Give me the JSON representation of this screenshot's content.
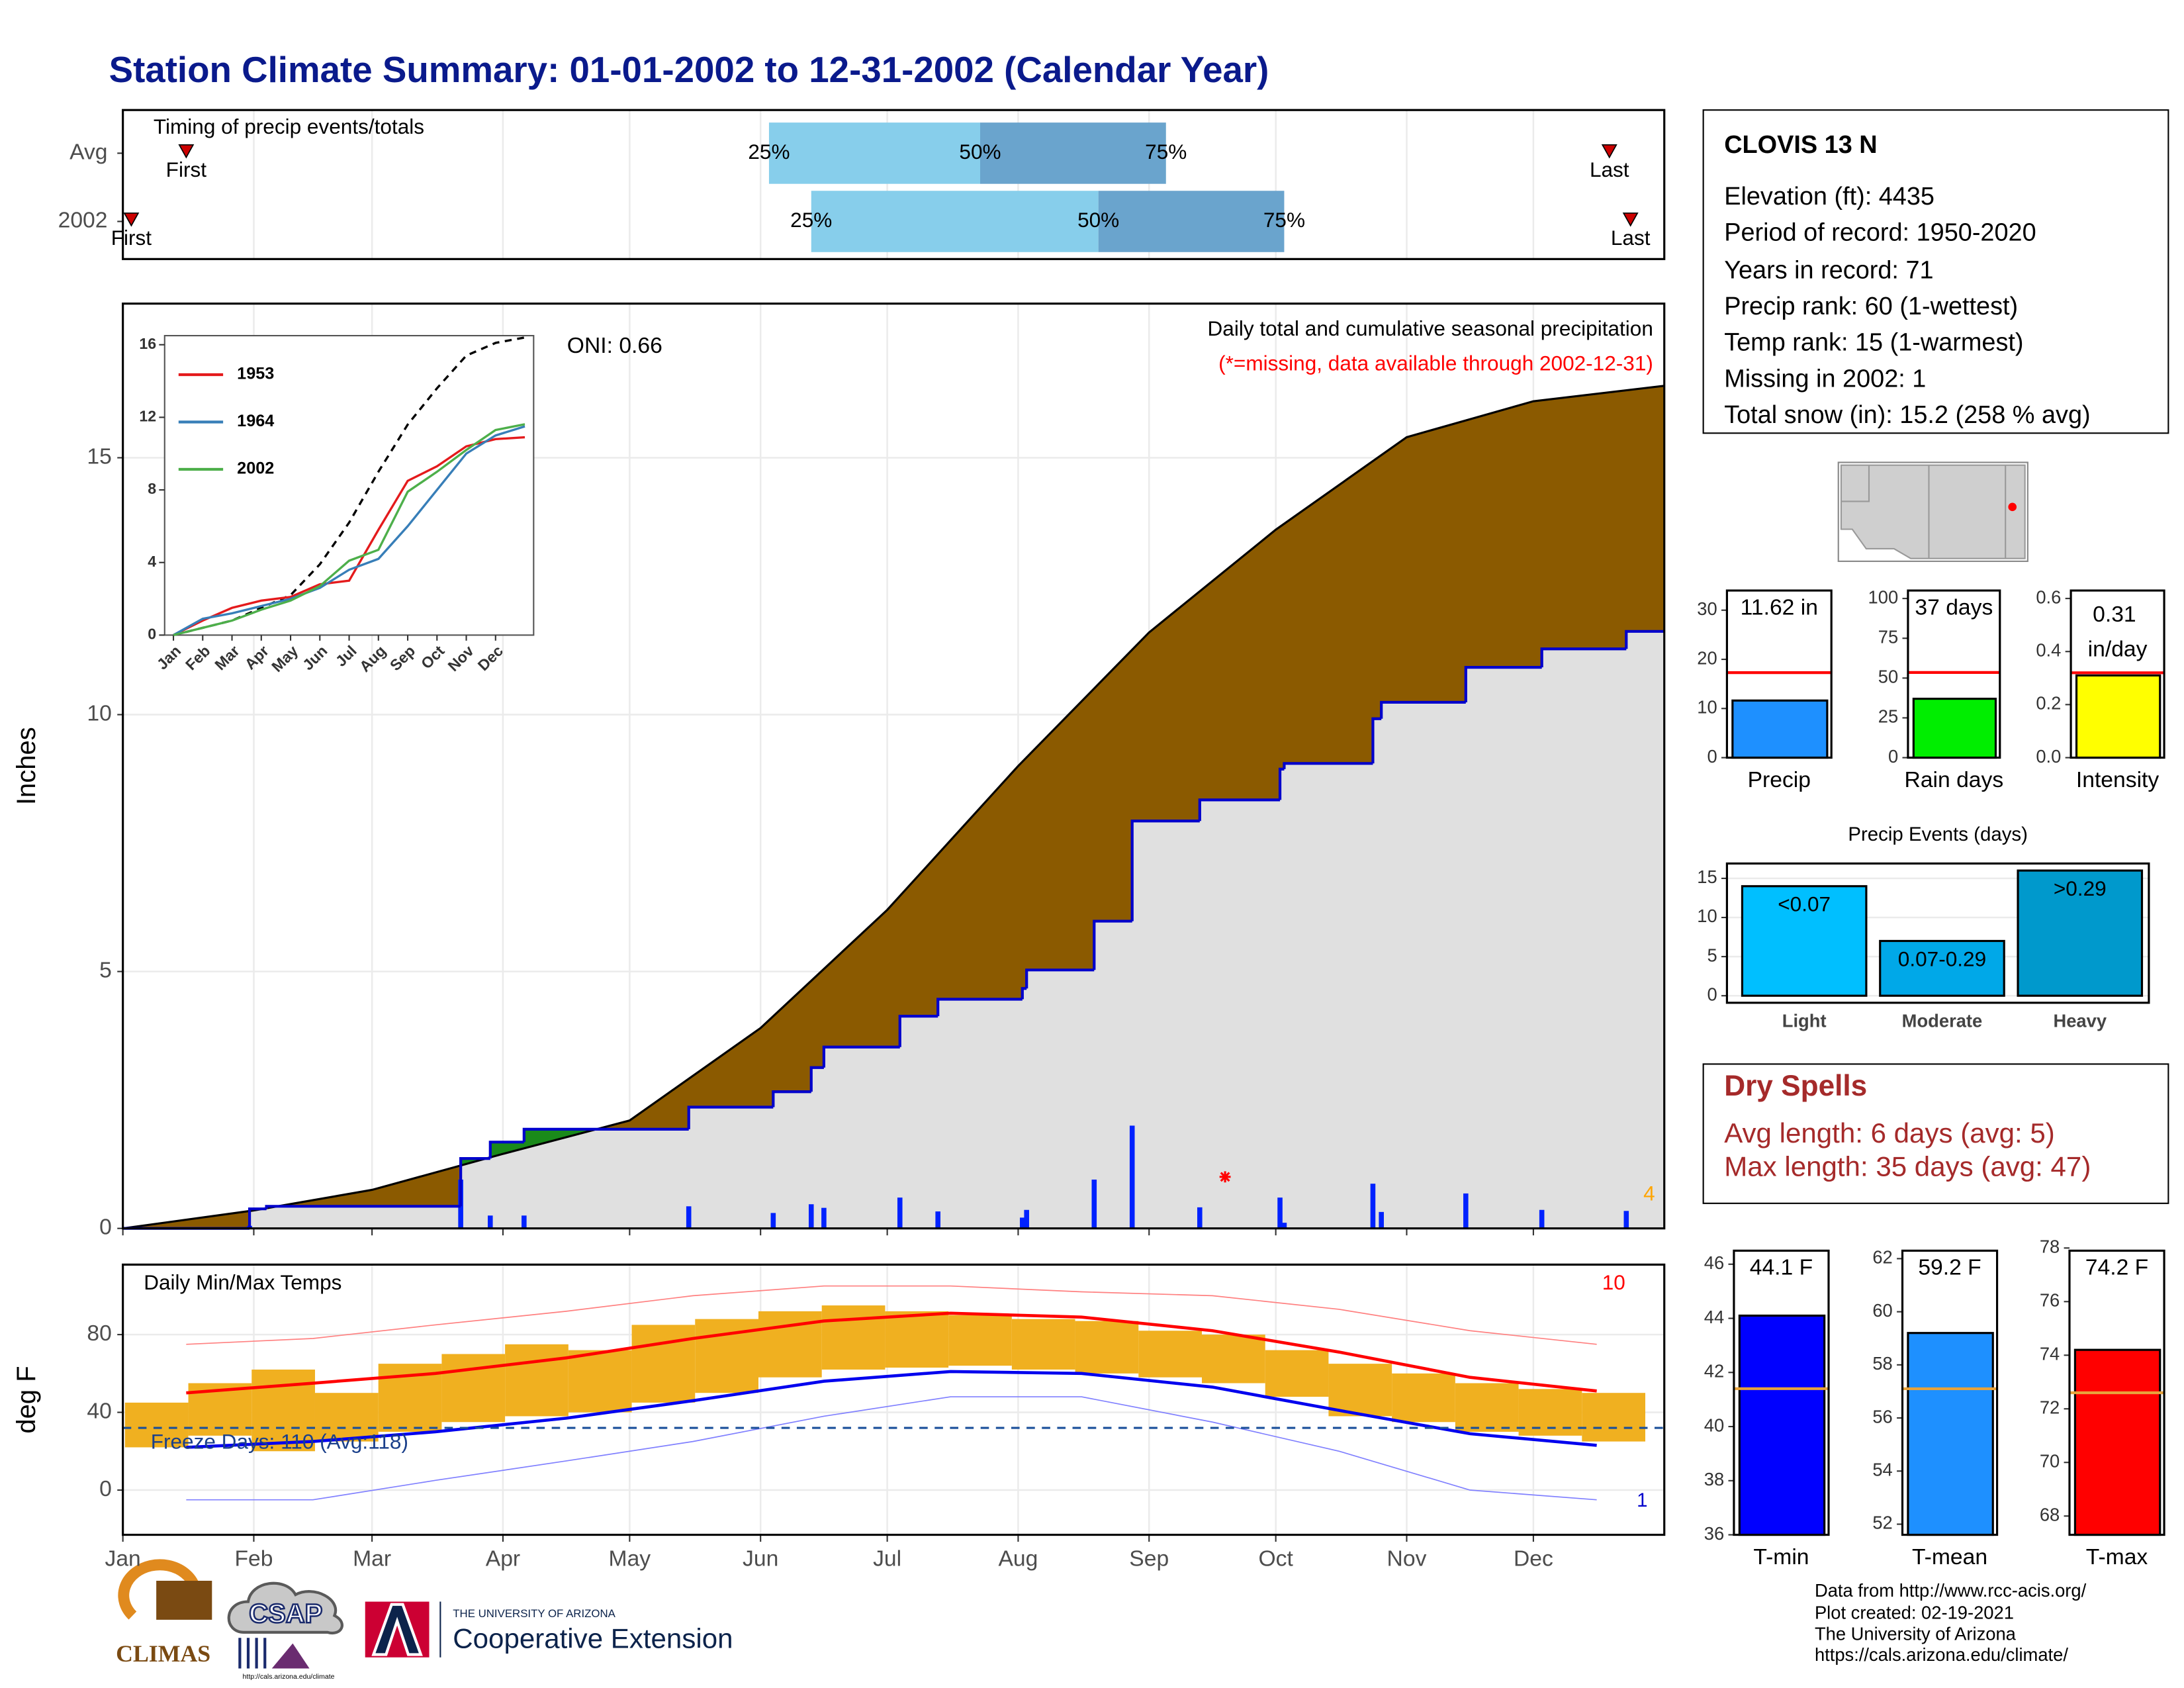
{
  "title": "Station Climate Summary: 01-01-2002 to 12-31-2002 (Calendar Year)",
  "chart_data": [
    {
      "type": "timing",
      "annotation": "Timing of precip events/totals",
      "categories": [
        "Avg",
        "2002"
      ],
      "xlim": [
        0,
        365
      ],
      "series": [
        {
          "name": "First",
          "color": "#cc0000",
          "values": [
            15,
            2
          ]
        },
        {
          "name": "25%",
          "color": "#87ceeb",
          "values": [
            153,
            163
          ]
        },
        {
          "name": "50%",
          "color": "#6aa4cd",
          "values": [
            203,
            231
          ]
        },
        {
          "name": "75%",
          "values": [
            247,
            275
          ]
        },
        {
          "name": "Last",
          "color": "#cc0000",
          "values": [
            352,
            357
          ]
        }
      ]
    },
    {
      "type": "cumulative",
      "title": "Daily total and cumulative seasonal precipitation",
      "subtitle": "(*=missing, data available through 2002-12-31)",
      "annotations": [
        {
          "text": "ONI: 0.66"
        },
        {
          "text": "4",
          "color": "#ffa500"
        }
      ],
      "ylabel": "Inches",
      "xlim": [
        0,
        365
      ],
      "ylim": [
        0,
        18
      ],
      "yticks": [
        0,
        5,
        10,
        15
      ],
      "grid": true,
      "series": [
        {
          "type": "avg",
          "color": "#8b5a00",
          "x": [
            0,
            31,
            59,
            90,
            120,
            151,
            181,
            212,
            243,
            273,
            304,
            334,
            365
          ],
          "values": [
            0,
            0.35,
            0.75,
            1.45,
            2.1,
            3.9,
            6.2,
            9.0,
            11.6,
            13.6,
            15.4,
            16.1,
            16.4
          ]
        },
        {
          "type": "cumulative",
          "color": "#0000cc",
          "fill": "#e0e0e0",
          "above_color": "#1a8a1a",
          "x": [
            0,
            30,
            34,
            80,
            87,
            95,
            134,
            154,
            163,
            166,
            184,
            193,
            213,
            214,
            230,
            239,
            255,
            274,
            275,
            296,
            298,
            318,
            336,
            356,
            365
          ],
          "values": [
            0,
            0.38,
            0.43,
            1.36,
            1.68,
            1.93,
            2.36,
            2.66,
            3.13,
            3.53,
            4.13,
            4.46,
            4.67,
            5.03,
            5.98,
            7.93,
            8.34,
            8.94,
            9.05,
            9.92,
            10.24,
            10.92,
            11.28,
            11.62,
            11.62
          ]
        },
        {
          "type": "daily",
          "color": "#0022ff",
          "x": [
            30,
            80,
            87,
            95,
            134,
            154,
            163,
            166,
            184,
            193,
            213,
            214,
            230,
            239,
            255,
            274,
            275,
            296,
            298,
            318,
            336,
            356
          ],
          "values": [
            0.05,
            0.95,
            0.25,
            0.25,
            0.43,
            0.3,
            0.47,
            0.4,
            0.6,
            0.33,
            0.21,
            0.36,
            0.95,
            2.0,
            0.41,
            0.6,
            0.11,
            0.87,
            0.32,
            0.68,
            0.36,
            0.34
          ]
        },
        {
          "type": "missing",
          "color": "#ff0000",
          "x": [
            261
          ]
        }
      ]
    },
    {
      "type": "line",
      "xlim": [
        -0.3,
        12.3
      ],
      "ylim": [
        0,
        16.5
      ],
      "yticks": [
        0,
        4,
        8,
        12,
        16
      ],
      "xticks": [
        {
          "value": 0,
          "label": "Jan"
        },
        {
          "value": 1,
          "label": "Feb"
        },
        {
          "value": 2,
          "label": "Mar"
        },
        {
          "value": 3,
          "label": "Apr"
        },
        {
          "value": 4,
          "label": "May"
        },
        {
          "value": 5,
          "label": "Jun"
        },
        {
          "value": 6,
          "label": "Jul"
        },
        {
          "value": 7,
          "label": "Aug"
        },
        {
          "value": 8,
          "label": "Sep"
        },
        {
          "value": 9,
          "label": "Oct"
        },
        {
          "value": 10,
          "label": "Nov"
        },
        {
          "value": 11,
          "label": "Dec"
        }
      ],
      "x": [
        0,
        1,
        2,
        3,
        4,
        5,
        6,
        7,
        8,
        9,
        10,
        11,
        12
      ],
      "series": [
        {
          "color": "#000000",
          "dash": true,
          "values": [
            0,
            0.4,
            0.8,
            1.5,
            2.2,
            3.9,
            6.2,
            9.0,
            11.6,
            13.6,
            15.4,
            16.1,
            16.4
          ]
        },
        {
          "name": "1953",
          "color": "#e41a1c",
          "values": [
            0,
            0.8,
            1.5,
            1.9,
            2.1,
            2.8,
            3.0,
            5.8,
            8.5,
            9.3,
            10.4,
            10.8,
            10.9
          ]
        },
        {
          "name": "1964",
          "color": "#377eb8",
          "values": [
            0,
            0.9,
            1.2,
            1.6,
            2.0,
            2.6,
            3.6,
            4.2,
            6.0,
            8.0,
            10.0,
            11.0,
            11.5
          ]
        },
        {
          "name": "2002",
          "color": "#4daf4a",
          "values": [
            0,
            0.4,
            0.8,
            1.4,
            1.9,
            2.7,
            4.1,
            4.7,
            7.9,
            9.0,
            10.2,
            11.3,
            11.62
          ]
        }
      ]
    },
    {
      "type": "temperature",
      "title": "Daily Min/Max Temps",
      "annotations": [
        {
          "text": "Freeze Days: 110 (Avg:118)",
          "color": "#1a3f8a"
        },
        {
          "text": "10",
          "color": "#ff0000"
        },
        {
          "text": "1",
          "color": "#0000cc"
        }
      ],
      "ylabel": "deg F",
      "xlim": [
        0,
        365
      ],
      "ylim": [
        -23,
        116
      ],
      "yticks": [
        0,
        40,
        80
      ],
      "freeze_line": 32,
      "grid": true,
      "xticks": [
        {
          "value": 0,
          "label": "Jan"
        },
        {
          "value": 31,
          "label": "Feb"
        },
        {
          "value": 59,
          "label": "Mar"
        },
        {
          "value": 90,
          "label": "Apr"
        },
        {
          "value": 120,
          "label": "May"
        },
        {
          "value": 151,
          "label": "Jun"
        },
        {
          "value": 181,
          "label": "Jul"
        },
        {
          "value": 212,
          "label": "Aug"
        },
        {
          "value": 243,
          "label": "Sep"
        },
        {
          "value": 273,
          "label": "Oct"
        },
        {
          "value": 304,
          "label": "Nov"
        },
        {
          "value": 334,
          "label": "Dec"
        }
      ],
      "series": [
        {
          "type": "range",
          "color": "#f0b020",
          "x": [
            8,
            23,
            38,
            53,
            68,
            83,
            98,
            113,
            128,
            143,
            158,
            173,
            188,
            203,
            218,
            233,
            248,
            263,
            278,
            293,
            308,
            323,
            338,
            353
          ],
          "high": [
            45,
            55,
            62,
            50,
            65,
            70,
            75,
            72,
            85,
            88,
            92,
            95,
            92,
            90,
            88,
            87,
            82,
            80,
            72,
            65,
            60,
            55,
            52,
            50
          ],
          "low": [
            22,
            28,
            20,
            25,
            30,
            35,
            38,
            40,
            45,
            50,
            58,
            62,
            63,
            64,
            62,
            60,
            58,
            55,
            48,
            38,
            35,
            30,
            28,
            25
          ]
        },
        {
          "type": "record",
          "color": "#ff8080",
          "x": [
            15,
            45,
            74,
            105,
            135,
            166,
            196,
            227,
            258,
            288,
            319,
            349
          ],
          "values": [
            75,
            78,
            85,
            92,
            100,
            105,
            105,
            102,
            100,
            93,
            82,
            75
          ]
        },
        {
          "type": "record",
          "color": "#8080ff",
          "x": [
            15,
            45,
            74,
            105,
            135,
            166,
            196,
            227,
            258,
            288,
            319,
            349
          ],
          "values": [
            -5,
            -5,
            5,
            15,
            25,
            38,
            48,
            48,
            35,
            20,
            0,
            -5
          ]
        },
        {
          "type": "normal",
          "color": "#ff0000",
          "x": [
            15,
            45,
            74,
            105,
            135,
            166,
            196,
            227,
            258,
            288,
            319,
            349
          ],
          "values": [
            50,
            55,
            60,
            68,
            78,
            87,
            91,
            89,
            82,
            71,
            58,
            51
          ]
        },
        {
          "type": "normal",
          "color": "#0000ee",
          "x": [
            15,
            45,
            74,
            105,
            135,
            166,
            196,
            227,
            258,
            288,
            319,
            349
          ],
          "values": [
            22,
            25,
            30,
            37,
            46,
            56,
            61,
            60,
            53,
            41,
            29,
            23
          ]
        }
      ]
    },
    {
      "type": "bar",
      "categories": [
        "Precip"
      ],
      "values": [
        11.62
      ],
      "value_labels": [
        "11.62 in"
      ],
      "color": "#1e90ff",
      "reference": 17.3,
      "reference_color": "#ff0000",
      "ylim": [
        0,
        34
      ],
      "yticks": [
        0,
        10,
        20,
        30
      ]
    },
    {
      "type": "bar",
      "categories": [
        "Rain days"
      ],
      "values": [
        37
      ],
      "value_labels": [
        "37 days"
      ],
      "color": "#00ee00",
      "reference": 53.5,
      "reference_color": "#ff0000",
      "ylim": [
        0,
        105
      ],
      "yticks": [
        0,
        25,
        50,
        75,
        100
      ]
    },
    {
      "type": "bar",
      "categories": [
        "Intensity"
      ],
      "values": [
        0.31
      ],
      "value_labels": [
        "0.31 in/day"
      ],
      "color": "#ffff00",
      "reference": 0.32,
      "reference_color": "#ff0000",
      "ylim": [
        0,
        0.63
      ],
      "yticks": [
        {
          "value": 0,
          "label": "0.0"
        },
        0.2,
        0.4,
        0.6
      ]
    },
    {
      "type": "bar",
      "title": "Precip Events (days)",
      "categories": [
        "Light",
        "Moderate",
        "Heavy"
      ],
      "values": [
        14,
        7,
        16
      ],
      "bin_labels": [
        "<0.07",
        "0.07-0.29",
        ">0.29"
      ],
      "colors": [
        "#00bfff",
        "#00a8e8",
        "#0099cc"
      ],
      "ylim": [
        -0.9,
        16.9
      ],
      "yticks": [
        0,
        5,
        10,
        15
      ],
      "grid": true
    },
    {
      "type": "bar",
      "categories": [
        "T-min"
      ],
      "values": [
        44.1
      ],
      "value_labels": [
        "44.1 F"
      ],
      "color": "#0000ff",
      "reference": 41.4,
      "reference_color": "#e8a33c",
      "ylim": [
        36,
        46.5
      ],
      "yticks": [
        36,
        38,
        40,
        42,
        44,
        46
      ]
    },
    {
      "type": "bar",
      "categories": [
        "T-mean"
      ],
      "values": [
        59.2
      ],
      "value_labels": [
        "59.2 F"
      ],
      "color": "#1e90ff",
      "reference": 57.1,
      "reference_color": "#e8a33c",
      "ylim": [
        51.6,
        62.3
      ],
      "yticks": [
        52,
        54,
        56,
        58,
        60,
        62
      ]
    },
    {
      "type": "bar",
      "categories": [
        "T-max"
      ],
      "values": [
        74.2
      ],
      "value_labels": [
        "74.2 F"
      ],
      "color": "#ff0000",
      "reference": 72.6,
      "reference_color": "#e8a33c",
      "ylim": [
        67.3,
        77.9
      ],
      "yticks": [
        68,
        70,
        72,
        74,
        76,
        78
      ]
    }
  ],
  "station": {
    "name": "CLOVIS 13 N",
    "lines": [
      "Elevation (ft): 4435",
      "Period of record: 1950-2020",
      "Years in record: 71",
      "Precip rank: 60 (1-wettest)",
      "Temp rank: 15 (1-warmest)",
      "Missing in 2002: 1",
      "Total snow (in): 15.2 (258 % avg)"
    ]
  },
  "dry_spells": {
    "title": "Dry Spells",
    "lines": [
      "Avg length: 6 days (avg: 5)",
      "Max length: 35 days (avg: 47)"
    ]
  },
  "footer": [
    "Data from http://www.rcc-acis.org/",
    "Plot created: 02-19-2021",
    "The University of Arizona",
    "https://cals.arizona.edu/climate/"
  ],
  "logos": {
    "climas": "CLIMAS",
    "csap": "CSAP",
    "csap_url": "http://cals.arizona.edu/climate",
    "university": "THE UNIVERSITY OF ARIZONA",
    "extension": "Cooperative Extension"
  }
}
